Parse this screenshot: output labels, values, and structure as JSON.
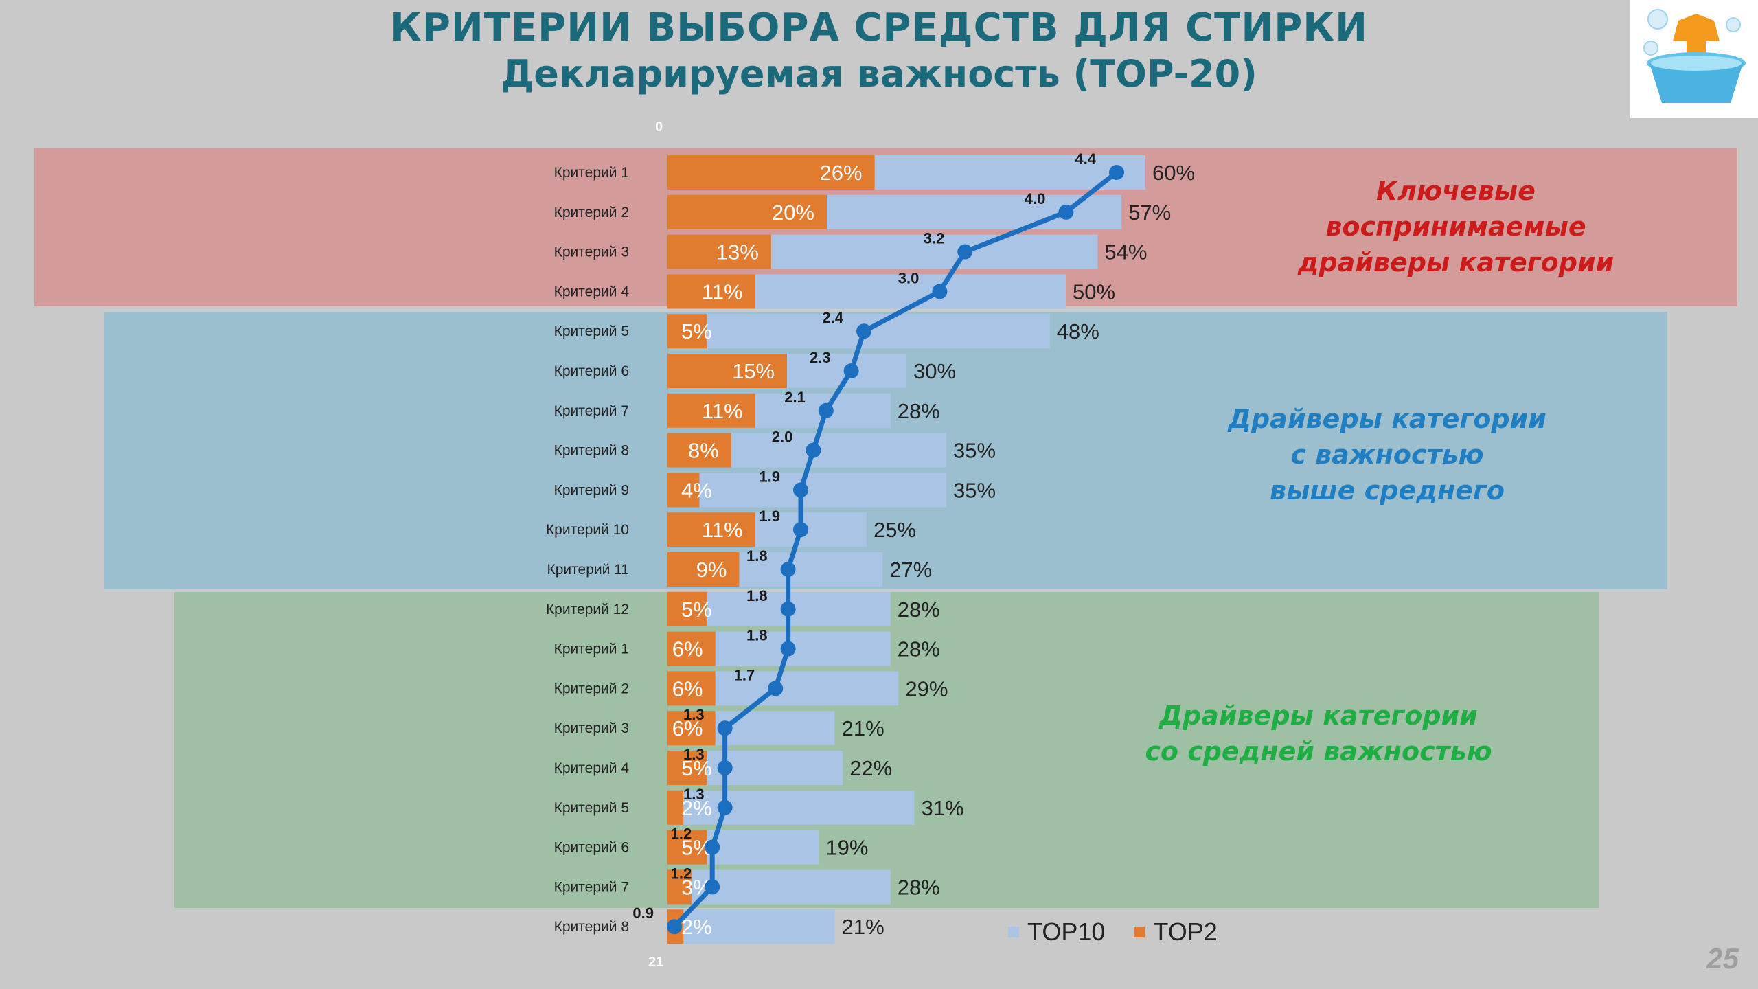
{
  "page": {
    "title": "КРИТЕРИИ ВЫБОРА СРЕДСТВ ДЛЯ СТИРКИ",
    "subtitle": "Декларируемая важность (TOP-20)",
    "page_number": "25",
    "axis_top_label": "0",
    "axis_bottom_label": "21"
  },
  "bands": [
    {
      "label_lines": [
        "Ключевые",
        "воспринимаемые",
        "драйверы категории"
      ],
      "color": "#d49b9b",
      "text_color": "#cc1b1b"
    },
    {
      "label_lines": [
        "Драйверы категории",
        "с важностью",
        "выше среднего"
      ],
      "color": "#9cbfcf",
      "text_color": "#1f7fc2"
    },
    {
      "label_lines": [
        "Драйверы категории",
        "со средней важностью"
      ],
      "color": "#9fc0a5",
      "text_color": "#1fae44"
    }
  ],
  "legend": {
    "top10": "TOP10",
    "top2": "TOP2"
  },
  "colors": {
    "top10": "#a9c4e4",
    "top2": "#e07b30",
    "line": "#1c6fc0"
  },
  "chart_data": {
    "type": "bar",
    "categories": [
      "Критерий 1",
      "Критерий 2",
      "Критерий 3",
      "Критерий 4",
      "Критерий 5",
      "Критерий 6",
      "Критерий 7",
      "Критерий 8",
      "Критерий 9",
      "Критерий 10",
      "Критерий 11",
      "Критерий 12",
      "Критерий 1",
      "Критерий 2",
      "Критерий 3",
      "Критерий 4",
      "Критерий 5",
      "Критерий 6",
      "Критерий 7",
      "Критерий 8"
    ],
    "series": [
      {
        "name": "TOP10",
        "values": [
          60,
          57,
          54,
          50,
          48,
          30,
          28,
          35,
          35,
          25,
          27,
          28,
          28,
          29,
          21,
          22,
          31,
          19,
          28,
          21
        ],
        "labels": [
          "60%",
          "57%",
          "54%",
          "50%",
          "48%",
          "30%",
          "28%",
          "35%",
          "35%",
          "25%",
          "27%",
          "28%",
          "28%",
          "29%",
          "21%",
          "22%",
          "31%",
          "19%",
          "28%",
          "21%"
        ]
      },
      {
        "name": "TOP2",
        "values": [
          26,
          20,
          13,
          11,
          5,
          15,
          11,
          8,
          4,
          11,
          9,
          5,
          6,
          6,
          6,
          5,
          2,
          5,
          3,
          2
        ],
        "labels": [
          "26%",
          "20%",
          "13%",
          "11%",
          "5%",
          "15%",
          "11%",
          "8%",
          "4%",
          "11%",
          "9%",
          "5%",
          "6%",
          "6%",
          "6%",
          "5%",
          "2%",
          "5%",
          "3%",
          "2%"
        ]
      }
    ],
    "line_values": [
      4.4,
      4.0,
      3.2,
      3.0,
      2.4,
      2.3,
      2.1,
      2.0,
      1.9,
      1.9,
      1.8,
      1.8,
      1.8,
      1.7,
      1.3,
      1.3,
      1.3,
      1.2,
      1.2,
      0.9
    ],
    "line_labels": [
      "4.4",
      "4.0",
      "3.2",
      "3.0",
      "2.4",
      "2.3",
      "2.1",
      "2.0",
      "1.9",
      "1.9",
      "1.8",
      "1.8",
      "1.8",
      "1.7",
      "1.3",
      "1.3",
      "1.3",
      "1.2",
      "1.2",
      "0.9"
    ],
    "xlim": [
      0,
      80
    ],
    "line_range": [
      0,
      6
    ],
    "legend_position": "bottom",
    "grid": false
  }
}
